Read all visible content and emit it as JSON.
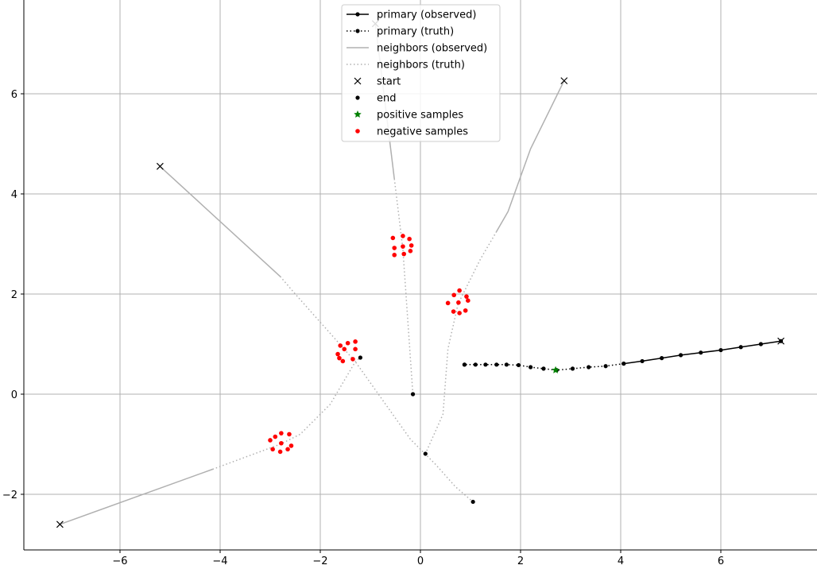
{
  "chart_data": {
    "type": "line",
    "title": "",
    "xlabel": "",
    "ylabel": "",
    "xlim": [
      -7.9,
      7.8
    ],
    "ylim": [
      -3.1,
      7.8
    ],
    "xticks": [
      -6,
      -4,
      -2,
      0,
      2,
      4,
      6
    ],
    "yticks": [
      -2,
      0,
      2,
      4,
      6
    ],
    "grid": true,
    "legend_position": "top-center",
    "legend": [
      {
        "label": "primary (observed)",
        "style": "black-solid-dot"
      },
      {
        "label": "primary (truth)",
        "style": "black-dotted-dot"
      },
      {
        "label": "neighbors (observed)",
        "style": "gray-solid"
      },
      {
        "label": "neighbors (truth)",
        "style": "gray-dotted"
      },
      {
        "label": "start",
        "style": "x-marker"
      },
      {
        "label": "end",
        "style": "black-point"
      },
      {
        "label": "positive samples",
        "style": "green-star"
      },
      {
        "label": "negative samples",
        "style": "red-point"
      }
    ],
    "colors": {
      "primary": "#000000",
      "neighbors": "#b0b0b0",
      "positive": "#008000",
      "negative": "#ff0000",
      "grid": "#b0b0b0"
    },
    "primary": {
      "observed": [
        [
          7.2,
          1.06
        ],
        [
          6.8,
          1.0
        ],
        [
          6.4,
          0.94
        ],
        [
          6.0,
          0.88
        ],
        [
          5.6,
          0.83
        ],
        [
          5.2,
          0.78
        ],
        [
          4.82,
          0.72
        ],
        [
          4.43,
          0.66
        ],
        [
          4.06,
          0.61
        ]
      ],
      "truth": [
        [
          4.06,
          0.61
        ],
        [
          3.7,
          0.56
        ],
        [
          3.36,
          0.54
        ],
        [
          3.04,
          0.51
        ],
        [
          2.72,
          0.48
        ],
        [
          2.46,
          0.51
        ],
        [
          2.2,
          0.54
        ],
        [
          1.96,
          0.58
        ],
        [
          1.72,
          0.59
        ],
        [
          1.52,
          0.59
        ],
        [
          1.3,
          0.59
        ],
        [
          1.1,
          0.59
        ],
        [
          0.88,
          0.59
        ]
      ],
      "start": [
        7.2,
        1.06
      ],
      "end": [
        0.88,
        0.59
      ]
    },
    "neighbors": [
      {
        "observed": [
          [
            -7.2,
            -2.6
          ],
          [
            -4.15,
            -1.5
          ]
        ],
        "truth": [
          [
            -4.15,
            -1.5
          ],
          [
            -2.8,
            -1.0
          ],
          [
            -2.4,
            -0.8
          ],
          [
            -1.8,
            -0.2
          ],
          [
            -1.3,
            0.65
          ],
          [
            -1.2,
            0.73
          ]
        ],
        "start": [
          -7.2,
          -2.6
        ],
        "end": [
          -1.2,
          0.73
        ]
      },
      {
        "observed": [
          [
            -5.2,
            4.55
          ],
          [
            -2.8,
            2.35
          ]
        ],
        "truth": [
          [
            -2.8,
            2.35
          ],
          [
            -2.5,
            2.0
          ],
          [
            -1.3,
            0.65
          ],
          [
            -0.2,
            -0.9
          ],
          [
            0.3,
            -1.4
          ],
          [
            0.7,
            -1.85
          ],
          [
            1.05,
            -2.15
          ]
        ],
        "start": [
          -5.2,
          4.55
        ],
        "end": [
          1.05,
          -2.15
        ]
      },
      {
        "observed": [
          [
            -0.9,
            7.4
          ],
          [
            -0.52,
            4.3
          ]
        ],
        "truth": [
          [
            -0.52,
            4.3
          ],
          [
            -0.35,
            2.9
          ],
          [
            -0.15,
            0.0
          ]
        ],
        "start": [
          -0.9,
          7.4
        ],
        "end": [
          -0.15,
          0.0
        ]
      },
      {
        "observed": [
          [
            2.87,
            6.26
          ],
          [
            2.2,
            4.9
          ],
          [
            1.75,
            3.65
          ],
          [
            1.52,
            3.25
          ]
        ],
        "truth": [
          [
            1.52,
            3.25
          ],
          [
            1.2,
            2.7
          ],
          [
            0.75,
            1.8
          ],
          [
            0.55,
            0.9
          ],
          [
            0.45,
            -0.4
          ],
          [
            0.1,
            -1.19
          ]
        ],
        "start": [
          2.87,
          6.26
        ],
        "end": [
          0.1,
          -1.19
        ]
      }
    ],
    "positive_samples": [
      [
        2.7,
        0.48
      ]
    ],
    "negative_samples": [
      [
        -3.0,
        -0.92
      ],
      [
        -2.9,
        -0.85
      ],
      [
        -2.78,
        -0.78
      ],
      [
        -2.62,
        -0.8
      ],
      [
        -2.95,
        -1.1
      ],
      [
        -2.8,
        -1.15
      ],
      [
        -2.65,
        -1.1
      ],
      [
        -2.58,
        -1.03
      ],
      [
        -2.78,
        -0.98
      ],
      [
        -1.65,
        0.8
      ],
      [
        -1.6,
        0.97
      ],
      [
        -1.45,
        1.02
      ],
      [
        -1.3,
        1.05
      ],
      [
        -1.52,
        0.9
      ],
      [
        -1.3,
        0.9
      ],
      [
        -1.55,
        0.66
      ],
      [
        -1.62,
        0.72
      ],
      [
        -1.35,
        0.7
      ],
      [
        -0.55,
        3.12
      ],
      [
        -0.35,
        3.16
      ],
      [
        -0.22,
        3.1
      ],
      [
        -0.18,
        2.97
      ],
      [
        -0.2,
        2.86
      ],
      [
        -0.35,
        2.95
      ],
      [
        -0.52,
        2.92
      ],
      [
        -0.52,
        2.78
      ],
      [
        -0.33,
        2.8
      ],
      [
        0.55,
        1.82
      ],
      [
        0.67,
        1.98
      ],
      [
        0.78,
        2.07
      ],
      [
        0.92,
        1.95
      ],
      [
        0.95,
        1.87
      ],
      [
        0.9,
        1.67
      ],
      [
        0.78,
        1.62
      ],
      [
        0.66,
        1.65
      ],
      [
        0.76,
        1.83
      ]
    ]
  }
}
